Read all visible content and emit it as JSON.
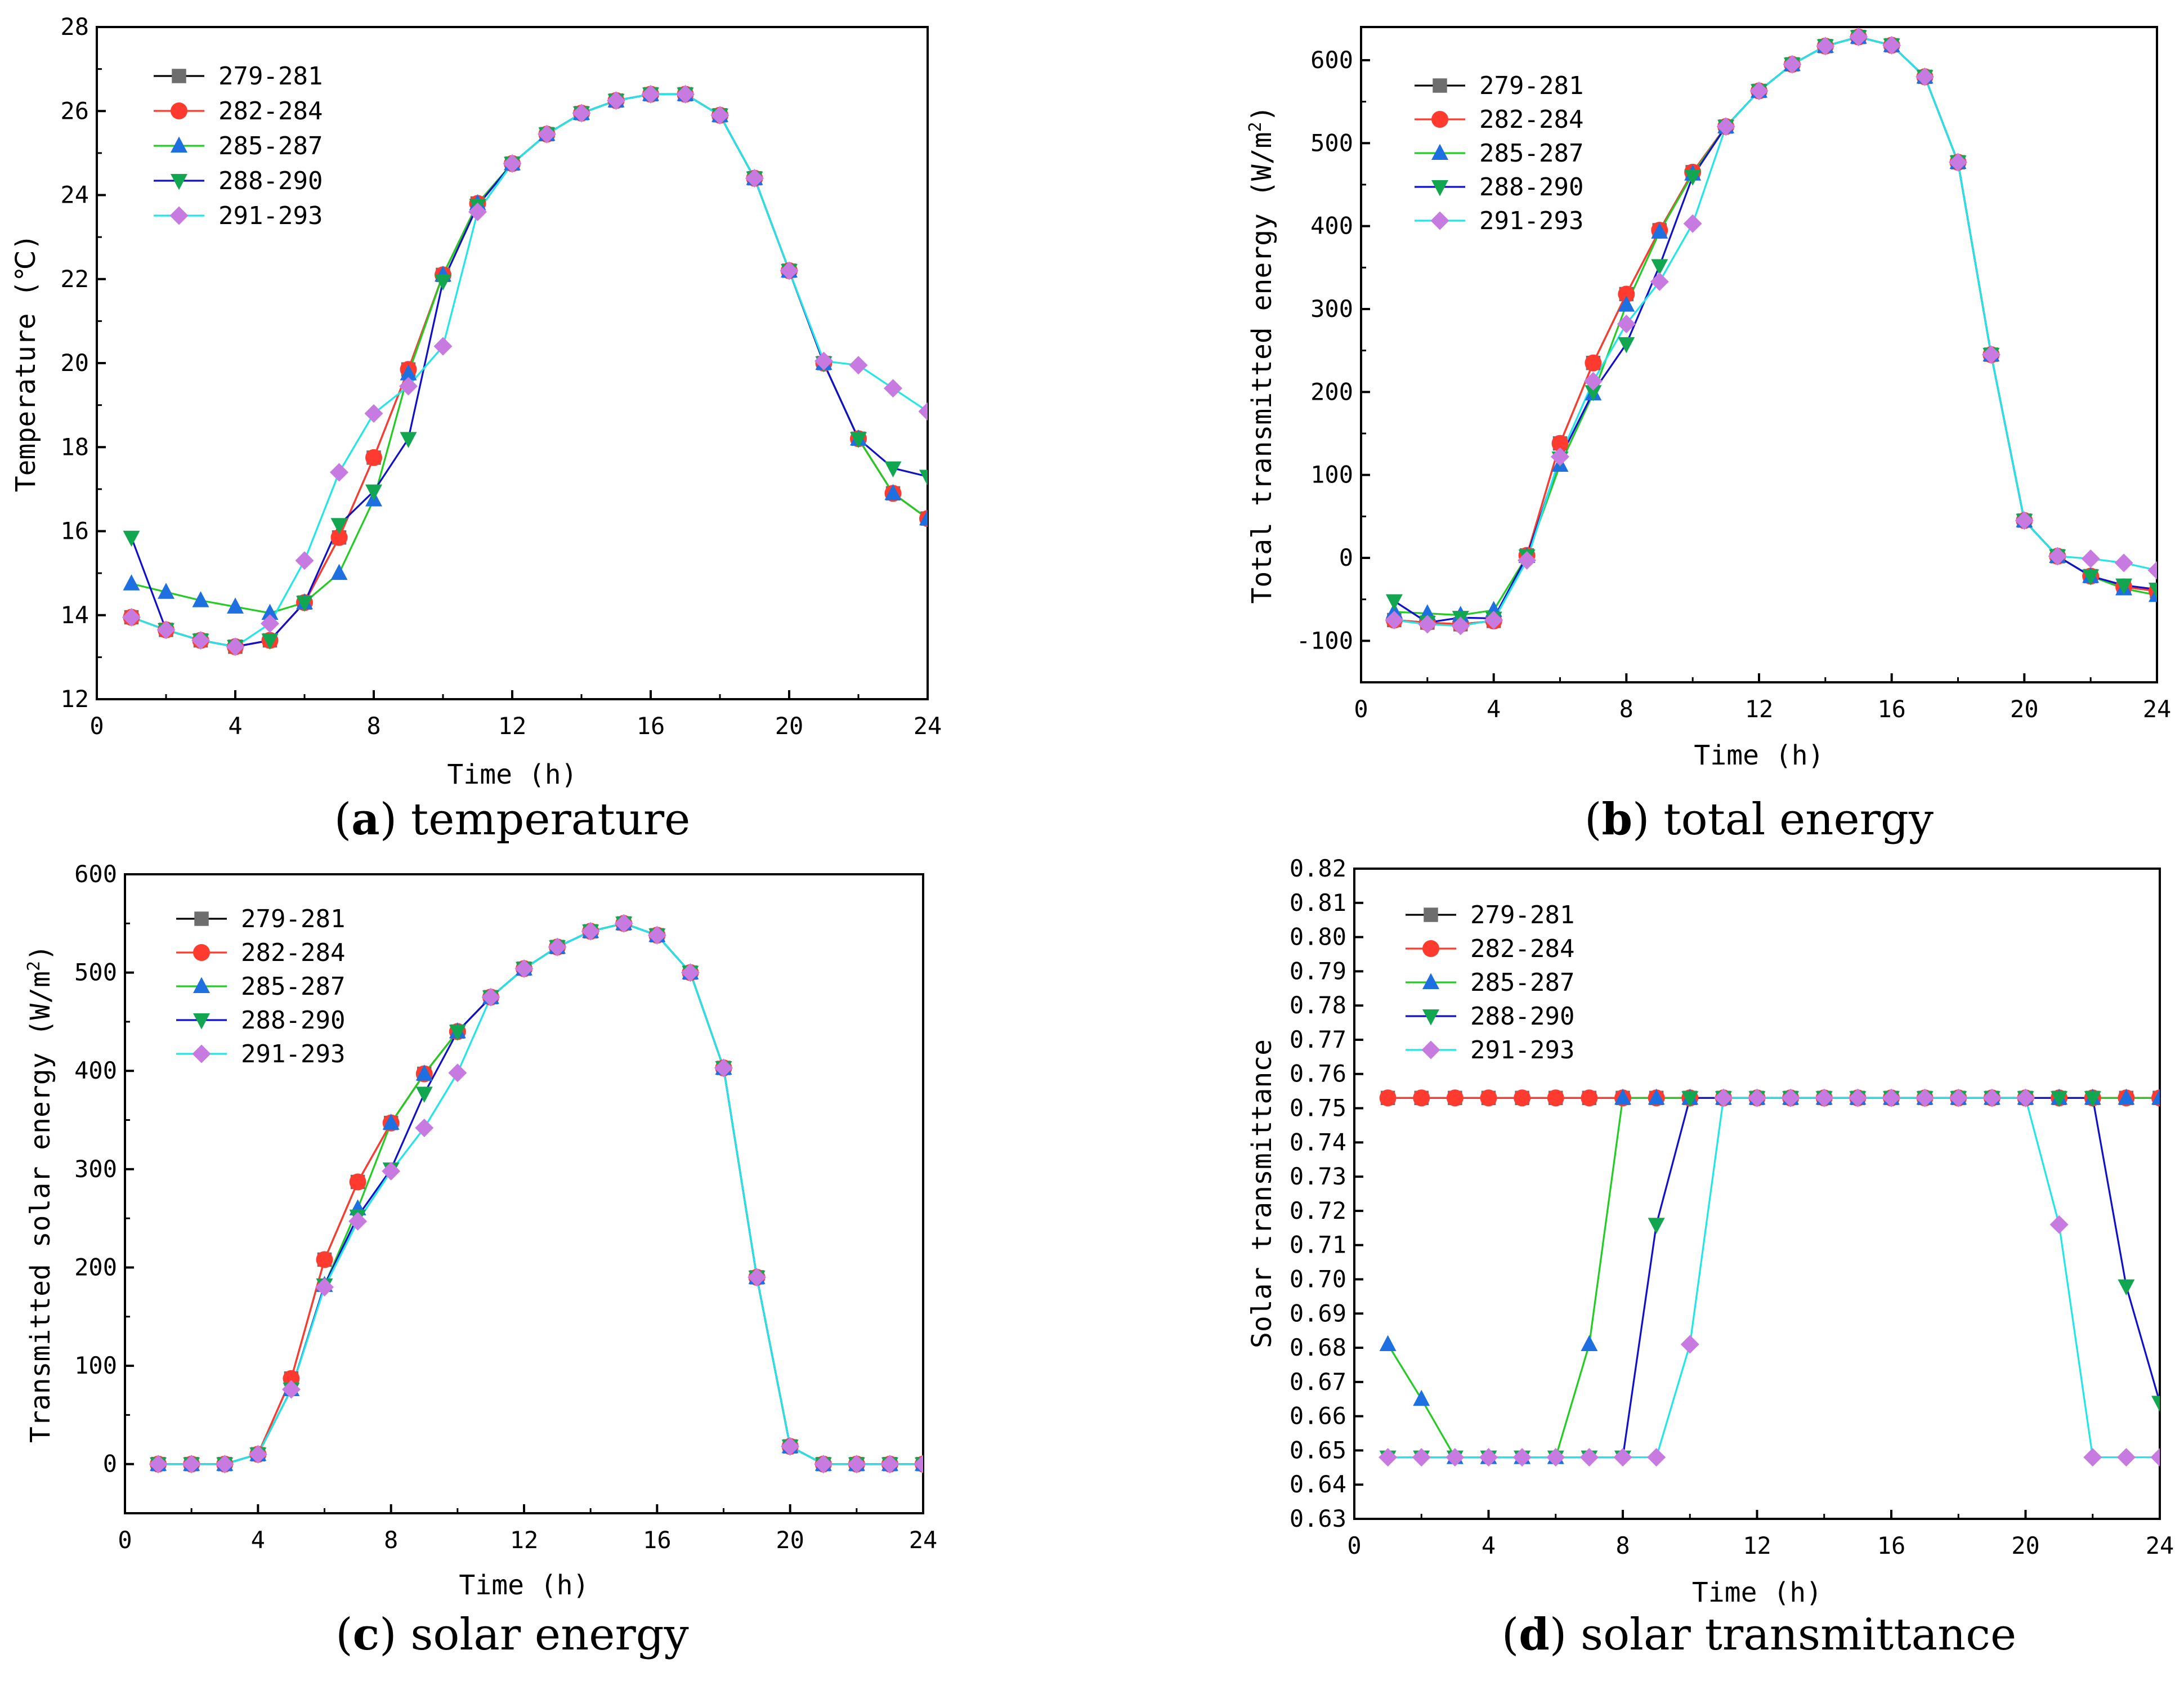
{
  "chart_data": [
    {
      "type": "line",
      "panel": "a",
      "caption_letter": "a",
      "caption_text": "temperature",
      "xlabel": "Time (h)",
      "ylabel": "Temperature (℃)",
      "xlim": [
        0,
        24
      ],
      "ylim": [
        12,
        28
      ],
      "xticks": [
        0,
        4,
        8,
        12,
        16,
        20,
        24
      ],
      "yticks": [
        12,
        14,
        16,
        18,
        20,
        22,
        24,
        26,
        28
      ],
      "legend": "top-left",
      "x": [
        1,
        2,
        3,
        4,
        5,
        6,
        7,
        8,
        9,
        10,
        11,
        12,
        13,
        14,
        15,
        16,
        17,
        18,
        19,
        20,
        21,
        22,
        23,
        24
      ],
      "series": [
        {
          "name": "279-281",
          "color": "#6e6e6e",
          "marker": "square",
          "values": [
            13.95,
            13.65,
            13.4,
            13.25,
            13.4,
            14.3,
            15.85,
            17.75,
            19.85,
            22.1,
            23.8,
            24.75,
            25.45,
            25.95,
            26.25,
            26.4,
            26.4,
            25.9,
            24.4,
            22.2,
            20.0,
            18.2,
            16.9,
            16.3
          ]
        },
        {
          "name": "282-284",
          "color": "#ff3b30",
          "marker": "circle",
          "values": [
            13.95,
            13.65,
            13.4,
            13.25,
            13.4,
            14.3,
            15.85,
            17.75,
            19.85,
            22.1,
            23.8,
            24.75,
            25.45,
            25.95,
            26.25,
            26.4,
            26.4,
            25.9,
            24.4,
            22.2,
            20.0,
            18.2,
            16.9,
            16.3
          ]
        },
        {
          "name": "285-287",
          "color": "#1e6fe0",
          "marker": "triangle-up",
          "line_color": "#22cc22",
          "values": [
            14.75,
            14.55,
            14.35,
            14.2,
            14.05,
            14.3,
            15.0,
            16.75,
            19.75,
            22.1,
            23.8,
            24.75,
            25.45,
            25.95,
            26.25,
            26.4,
            26.4,
            25.9,
            24.4,
            22.2,
            20.0,
            18.2,
            16.9,
            16.3
          ]
        },
        {
          "name": "288-290",
          "color": "#12a650",
          "marker": "triangle-down",
          "line_color": "#1010cc",
          "values": [
            15.85,
            13.65,
            13.4,
            13.25,
            13.4,
            14.3,
            16.15,
            16.95,
            18.2,
            21.95,
            23.75,
            24.75,
            25.45,
            25.95,
            26.25,
            26.4,
            26.4,
            25.9,
            24.4,
            22.2,
            20.0,
            18.2,
            17.5,
            17.3
          ]
        },
        {
          "name": "291-293",
          "color": "#c77be0",
          "marker": "diamond",
          "line_color": "#22e6e6",
          "values": [
            13.95,
            13.65,
            13.4,
            13.25,
            13.8,
            15.3,
            17.4,
            18.8,
            19.45,
            20.4,
            23.6,
            24.75,
            25.45,
            25.95,
            26.25,
            26.4,
            26.4,
            25.9,
            24.4,
            22.2,
            20.05,
            19.95,
            19.4,
            18.85
          ]
        }
      ]
    },
    {
      "type": "line",
      "panel": "b",
      "caption_letter": "b",
      "caption_text": "total energy",
      "xlabel": "Time (h)",
      "ylabel": "Total transmitted energy (W/m",
      "ylabel_sup": "2",
      "ylabel_end": ")",
      "xlim": [
        0,
        24
      ],
      "ylim": [
        -150,
        640
      ],
      "xticks": [
        0,
        4,
        8,
        12,
        16,
        20,
        24
      ],
      "yticks": [
        -100,
        0,
        100,
        200,
        300,
        400,
        500,
        600
      ],
      "legend": "top-left",
      "x": [
        1,
        2,
        3,
        4,
        5,
        6,
        7,
        8,
        9,
        10,
        11,
        12,
        13,
        14,
        15,
        16,
        17,
        18,
        19,
        20,
        21,
        22,
        23,
        24
      ],
      "series": [
        {
          "name": "279-281",
          "color": "#6e6e6e",
          "marker": "square",
          "values": [
            -75,
            -78,
            -80,
            -76,
            3,
            138,
            235,
            318,
            395,
            465,
            520,
            563,
            595,
            617,
            628,
            618,
            580,
            477,
            245,
            45,
            2,
            -22,
            -35,
            -40
          ]
        },
        {
          "name": "282-284",
          "color": "#ff3b30",
          "marker": "circle",
          "values": [
            -75,
            -78,
            -80,
            -76,
            3,
            138,
            235,
            318,
            395,
            465,
            520,
            563,
            595,
            617,
            628,
            618,
            580,
            477,
            245,
            45,
            2,
            -22,
            -35,
            -40
          ]
        },
        {
          "name": "285-287",
          "color": "#1e6fe0",
          "marker": "triangle-up",
          "line_color": "#22cc22",
          "values": [
            -65,
            -67,
            -69,
            -63,
            2,
            112,
            198,
            305,
            393,
            463,
            520,
            563,
            595,
            617,
            628,
            618,
            580,
            477,
            245,
            45,
            2,
            -22,
            -37,
            -45
          ]
        },
        {
          "name": "288-290",
          "color": "#12a650",
          "marker": "triangle-down",
          "line_color": "#1010cc",
          "values": [
            -52,
            -78,
            -72,
            -73,
            2,
            120,
            200,
            258,
            352,
            460,
            520,
            563,
            595,
            617,
            628,
            618,
            580,
            477,
            245,
            45,
            2,
            -22,
            -33,
            -38
          ]
        },
        {
          "name": "291-293",
          "color": "#c77be0",
          "marker": "diamond",
          "line_color": "#22e6e6",
          "values": [
            -75,
            -80,
            -82,
            -75,
            -3,
            122,
            213,
            282,
            333,
            403,
            520,
            563,
            595,
            617,
            628,
            618,
            580,
            477,
            245,
            45,
            2,
            -1,
            -6,
            -15
          ]
        }
      ]
    },
    {
      "type": "line",
      "panel": "c",
      "caption_letter": "c",
      "caption_text": "solar energy",
      "xlabel": "Time (h)",
      "ylabel": "Transmitted solar energy (W/m",
      "ylabel_sup": "2",
      "ylabel_end": ")",
      "xlim": [
        0,
        24
      ],
      "ylim": [
        -50,
        600
      ],
      "xticks": [
        0,
        4,
        8,
        12,
        16,
        20,
        24
      ],
      "yticks": [
        0,
        100,
        200,
        300,
        400,
        500,
        600
      ],
      "legend": "top-left",
      "x": [
        1,
        2,
        3,
        4,
        5,
        6,
        7,
        8,
        9,
        10,
        11,
        12,
        13,
        14,
        15,
        16,
        17,
        18,
        19,
        20,
        21,
        22,
        23,
        24
      ],
      "series": [
        {
          "name": "279-281",
          "color": "#6e6e6e",
          "marker": "square",
          "values": [
            0,
            0,
            0,
            10,
            87,
            208,
            287,
            347,
            397,
            440,
            475,
            504,
            526,
            542,
            550,
            538,
            500,
            403,
            190,
            18,
            0,
            0,
            0,
            0
          ]
        },
        {
          "name": "282-284",
          "color": "#ff3b30",
          "marker": "circle",
          "values": [
            0,
            0,
            0,
            10,
            87,
            208,
            287,
            347,
            397,
            440,
            475,
            504,
            526,
            542,
            550,
            538,
            500,
            403,
            190,
            18,
            0,
            0,
            0,
            0
          ]
        },
        {
          "name": "285-287",
          "color": "#1e6fe0",
          "marker": "triangle-up",
          "line_color": "#22cc22",
          "values": [
            0,
            0,
            0,
            10,
            76,
            182,
            260,
            347,
            397,
            440,
            475,
            504,
            526,
            542,
            550,
            538,
            500,
            403,
            190,
            18,
            0,
            0,
            0,
            0
          ]
        },
        {
          "name": "288-290",
          "color": "#12a650",
          "marker": "triangle-down",
          "line_color": "#1010cc",
          "values": [
            0,
            0,
            0,
            10,
            76,
            182,
            252,
            300,
            377,
            440,
            475,
            504,
            526,
            542,
            550,
            538,
            500,
            403,
            190,
            18,
            0,
            0,
            0,
            0
          ]
        },
        {
          "name": "291-293",
          "color": "#c77be0",
          "marker": "diamond",
          "line_color": "#22e6e6",
          "values": [
            0,
            0,
            0,
            10,
            76,
            180,
            247,
            298,
            342,
            398,
            475,
            504,
            526,
            542,
            550,
            538,
            500,
            403,
            190,
            18,
            0,
            0,
            0,
            0
          ]
        }
      ]
    },
    {
      "type": "line",
      "panel": "d",
      "caption_letter": "d",
      "caption_text": "solar transmittance",
      "xlabel": "Time (h)",
      "ylabel": "Solar transmittance",
      "xlim": [
        0,
        24
      ],
      "ylim": [
        0.63,
        0.82
      ],
      "xticks": [
        0,
        4,
        8,
        12,
        16,
        20,
        24
      ],
      "yticks": [
        "0.63",
        "0.64",
        "0.65",
        "0.66",
        "0.67",
        "0.68",
        "0.69",
        "0.70",
        "0.71",
        "0.72",
        "0.73",
        "0.74",
        "0.75",
        "0.76",
        "0.77",
        "0.78",
        "0.79",
        "0.80",
        "0.81",
        "0.82"
      ],
      "legend": "top-left",
      "x": [
        1,
        2,
        3,
        4,
        5,
        6,
        7,
        8,
        9,
        10,
        11,
        12,
        13,
        14,
        15,
        16,
        17,
        18,
        19,
        20,
        21,
        22,
        23,
        24
      ],
      "series": [
        {
          "name": "279-281",
          "color": "#6e6e6e",
          "marker": "square",
          "values": [
            0.753,
            0.753,
            0.753,
            0.753,
            0.753,
            0.753,
            0.753,
            0.753,
            0.753,
            0.753,
            0.753,
            0.753,
            0.753,
            0.753,
            0.753,
            0.753,
            0.753,
            0.753,
            0.753,
            0.753,
            0.753,
            0.753,
            0.753,
            0.753
          ]
        },
        {
          "name": "282-284",
          "color": "#ff3b30",
          "marker": "circle",
          "values": [
            0.753,
            0.753,
            0.753,
            0.753,
            0.753,
            0.753,
            0.753,
            0.753,
            0.753,
            0.753,
            0.753,
            0.753,
            0.753,
            0.753,
            0.753,
            0.753,
            0.753,
            0.753,
            0.753,
            0.753,
            0.753,
            0.753,
            0.753,
            0.753
          ]
        },
        {
          "name": "285-287",
          "color": "#1e6fe0",
          "marker": "triangle-up",
          "line_color": "#22cc22",
          "values": [
            0.681,
            0.665,
            0.648,
            0.648,
            0.648,
            0.648,
            0.681,
            0.753,
            0.753,
            0.753,
            0.753,
            0.753,
            0.753,
            0.753,
            0.753,
            0.753,
            0.753,
            0.753,
            0.753,
            0.753,
            0.753,
            0.753,
            0.753,
            0.753
          ]
        },
        {
          "name": "288-290",
          "color": "#12a650",
          "marker": "triangle-down",
          "line_color": "#1010cc",
          "values": [
            0.648,
            0.648,
            0.648,
            0.648,
            0.648,
            0.648,
            0.648,
            0.648,
            0.716,
            0.753,
            0.753,
            0.753,
            0.753,
            0.753,
            0.753,
            0.753,
            0.753,
            0.753,
            0.753,
            0.753,
            0.753,
            0.753,
            0.698,
            0.664
          ]
        },
        {
          "name": "291-293",
          "color": "#c77be0",
          "marker": "diamond",
          "line_color": "#22e6e6",
          "values": [
            0.648,
            0.648,
            0.648,
            0.648,
            0.648,
            0.648,
            0.648,
            0.648,
            0.648,
            0.681,
            0.753,
            0.753,
            0.753,
            0.753,
            0.753,
            0.753,
            0.753,
            0.753,
            0.753,
            0.753,
            0.716,
            0.648,
            0.648,
            0.648
          ]
        }
      ]
    }
  ]
}
